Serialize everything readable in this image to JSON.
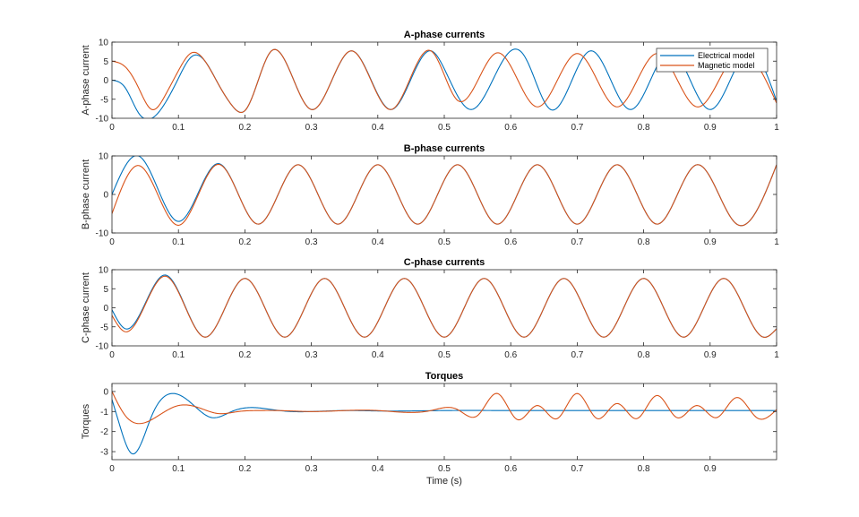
{
  "chart_data": [
    {
      "type": "line",
      "title": "A-phase currents",
      "xlabel": "",
      "ylabel": "A-phase current",
      "xlim": [
        0,
        1
      ],
      "ylim": [
        -10,
        10
      ],
      "xticks": [
        0,
        0.1,
        0.2,
        0.3,
        0.4,
        0.5,
        0.6,
        0.7,
        0.8,
        0.9,
        1
      ],
      "xtick_labels": [
        "0",
        "0.1",
        "0.2",
        "0.3",
        "0.4",
        "0.5",
        "0.6",
        "0.7",
        "0.8",
        "0.9",
        "1"
      ],
      "yticks": [
        -10,
        -5,
        0,
        5,
        10
      ],
      "ytick_labels": [
        "-10",
        "-5",
        "0",
        "5",
        "10"
      ],
      "legend": {
        "position": "top-right",
        "entries": [
          "Electrical model",
          "Magnetic model"
        ]
      },
      "series": [
        {
          "name": "Electrical model",
          "color": "#0072BD",
          "x": [
            0,
            0.02,
            0.04,
            0.06,
            0.08,
            0.1,
            0.12,
            0.14,
            0.16,
            0.18,
            0.2,
            0.24,
            0.3,
            0.36,
            0.42,
            0.48,
            0.5,
            0.54,
            0.6,
            0.62,
            0.66,
            0.72,
            0.78,
            0.84,
            0.9,
            0.96,
            1.0
          ],
          "y": [
            0,
            -2,
            -8.6,
            -10,
            -6,
            0.5,
            6.2,
            5,
            -1,
            -6.5,
            -8,
            7.7,
            -7.7,
            7.7,
            -7.7,
            7.7,
            3,
            -7.7,
            7.7,
            6.5,
            -7.7,
            7.7,
            -7.7,
            7.7,
            -7.7,
            7.7,
            -5.5
          ]
        },
        {
          "name": "Magnetic model",
          "color": "#D95319",
          "x": [
            0,
            0.02,
            0.04,
            0.06,
            0.08,
            0.1,
            0.12,
            0.14,
            0.16,
            0.18,
            0.2,
            0.24,
            0.3,
            0.36,
            0.42,
            0.48,
            0.52,
            0.58,
            0.64,
            0.7,
            0.76,
            0.82,
            0.88,
            0.94,
            1.0
          ],
          "y": [
            5,
            3.5,
            -2,
            -7.7,
            -4,
            2.5,
            7.2,
            5,
            -1,
            -6.5,
            -8,
            7.7,
            -7.7,
            7.7,
            -7.7,
            7.7,
            -5.3,
            7.2,
            -7,
            7,
            -7,
            7,
            -7,
            7,
            -6
          ]
        }
      ]
    },
    {
      "type": "line",
      "title": "B-phase currents",
      "xlabel": "",
      "ylabel": "B-phase current",
      "xlim": [
        0,
        1
      ],
      "ylim": [
        -10,
        10
      ],
      "xticks": [
        0,
        0.1,
        0.2,
        0.3,
        0.4,
        0.5,
        0.6,
        0.7,
        0.8,
        0.9,
        1
      ],
      "xtick_labels": [
        "0",
        "0.1",
        "0.2",
        "0.3",
        "0.4",
        "0.5",
        "0.6",
        "0.7",
        "0.8",
        "0.9",
        "1"
      ],
      "yticks": [
        -10,
        0,
        10
      ],
      "ytick_labels": [
        "-10",
        "0",
        "10"
      ],
      "series": [
        {
          "name": "Electrical model",
          "color": "#0072BD",
          "x": [
            0,
            0.04,
            0.1,
            0.16,
            0.22,
            0.28,
            0.34,
            0.4,
            0.46,
            0.52,
            0.58,
            0.64,
            0.7,
            0.76,
            0.82,
            0.88,
            0.94,
            1.0
          ],
          "y": [
            0,
            10,
            -7,
            8,
            -7.7,
            7.7,
            -7.7,
            7.7,
            -7.7,
            7.7,
            -7.7,
            7.7,
            -7.7,
            7.7,
            -7.7,
            7.7,
            -7.7,
            7.7
          ]
        },
        {
          "name": "Magnetic model",
          "color": "#D95319",
          "x": [
            0,
            0.04,
            0.1,
            0.16,
            0.22,
            0.28,
            0.34,
            0.4,
            0.46,
            0.52,
            0.58,
            0.64,
            0.7,
            0.76,
            0.82,
            0.88,
            0.94,
            1.0
          ],
          "y": [
            -5,
            7.5,
            -8,
            7.8,
            -7.7,
            7.7,
            -7.7,
            7.7,
            -7.7,
            7.7,
            -7.7,
            7.7,
            -7.7,
            7.7,
            -7.7,
            7.7,
            -7.7,
            7.7
          ]
        }
      ]
    },
    {
      "type": "line",
      "title": "C-phase currents",
      "xlabel": "",
      "ylabel": "C-phase current",
      "xlim": [
        0,
        1
      ],
      "ylim": [
        -10,
        10
      ],
      "xticks": [
        0,
        0.1,
        0.2,
        0.3,
        0.4,
        0.5,
        0.6,
        0.7,
        0.8,
        0.9,
        1
      ],
      "xtick_labels": [
        "0",
        "0.1",
        "0.2",
        "0.3",
        "0.4",
        "0.5",
        "0.6",
        "0.7",
        "0.8",
        "0.9",
        "1"
      ],
      "yticks": [
        -10,
        -5,
        0,
        5,
        10
      ],
      "ytick_labels": [
        "-10",
        "-5",
        "0",
        "5",
        "10"
      ],
      "series": [
        {
          "name": "Electrical model",
          "color": "#0072BD",
          "x": [
            0,
            0.02,
            0.08,
            0.14,
            0.2,
            0.26,
            0.32,
            0.38,
            0.44,
            0.5,
            0.56,
            0.62,
            0.68,
            0.74,
            0.8,
            0.86,
            0.92,
            0.98,
            1.0
          ],
          "y": [
            -0.5,
            -5.5,
            8.6,
            -7.7,
            7.7,
            -7.7,
            7.7,
            -7.7,
            7.7,
            -7.7,
            7.7,
            -7.7,
            7.7,
            -7.7,
            7.7,
            -7.7,
            7.7,
            -7.7,
            -5.5
          ]
        },
        {
          "name": "Magnetic model",
          "color": "#D95319",
          "x": [
            0,
            0.02,
            0.08,
            0.14,
            0.2,
            0.26,
            0.32,
            0.38,
            0.44,
            0.5,
            0.56,
            0.62,
            0.68,
            0.74,
            0.8,
            0.86,
            0.92,
            0.98,
            1.0
          ],
          "y": [
            -2,
            -6.3,
            8.3,
            -7.7,
            7.7,
            -7.7,
            7.7,
            -7.7,
            7.7,
            -7.7,
            7.7,
            -7.7,
            7.7,
            -7.7,
            7.7,
            -7.7,
            7.7,
            -7.7,
            -5.5
          ]
        }
      ]
    },
    {
      "type": "line",
      "title": "Torques",
      "xlabel": "Time (s)",
      "ylabel": "Torques",
      "xlim": [
        0,
        1
      ],
      "ylim": [
        -3.4,
        0.4
      ],
      "xticks": [
        0,
        0.1,
        0.2,
        0.3,
        0.4,
        0.5,
        0.6,
        0.7,
        0.8,
        0.9
      ],
      "xtick_labels": [
        "0",
        "0.1",
        "0.2",
        "0.3",
        "0.4",
        "0.5",
        "0.6",
        "0.7",
        "0.8",
        "0.9"
      ],
      "yticks": [
        -3,
        -2,
        -1,
        0
      ],
      "ytick_labels": [
        "-3",
        "-2",
        "-1",
        "0"
      ],
      "series": [
        {
          "name": "Electrical model",
          "color": "#0072BD",
          "x": [
            0,
            0.01,
            0.03,
            0.06,
            0.09,
            0.12,
            0.15,
            0.18,
            0.21,
            0.24,
            0.27,
            0.3,
            0.35,
            0.4,
            0.5,
            0.6,
            0.7,
            0.8,
            0.9,
            1.0
          ],
          "y": [
            -0.4,
            -1.5,
            -3.1,
            -1.2,
            -0.1,
            -0.6,
            -1.3,
            -1.0,
            -0.8,
            -0.9,
            -1.0,
            -1.0,
            -0.95,
            -0.97,
            -0.95,
            -0.95,
            -0.95,
            -0.95,
            -0.95,
            -0.95
          ]
        },
        {
          "name": "Magnetic model",
          "color": "#D95319",
          "x": [
            0,
            0.02,
            0.04,
            0.07,
            0.1,
            0.13,
            0.16,
            0.19,
            0.22,
            0.25,
            0.3,
            0.35,
            0.4,
            0.48,
            0.52,
            0.55,
            0.58,
            0.61,
            0.64,
            0.67,
            0.7,
            0.73,
            0.76,
            0.79,
            0.82,
            0.85,
            0.88,
            0.91,
            0.94,
            0.97,
            1.0
          ],
          "y": [
            0,
            -1.2,
            -1.6,
            -1.2,
            -0.7,
            -0.8,
            -1.1,
            -1.0,
            -0.95,
            -0.95,
            -1.0,
            -0.95,
            -0.95,
            -0.95,
            -0.9,
            -1.2,
            -0.1,
            -1.4,
            -0.7,
            -1.35,
            -0.1,
            -1.35,
            -0.6,
            -1.35,
            -0.2,
            -1.3,
            -0.7,
            -1.3,
            -0.3,
            -1.3,
            -0.9
          ]
        }
      ]
    }
  ]
}
